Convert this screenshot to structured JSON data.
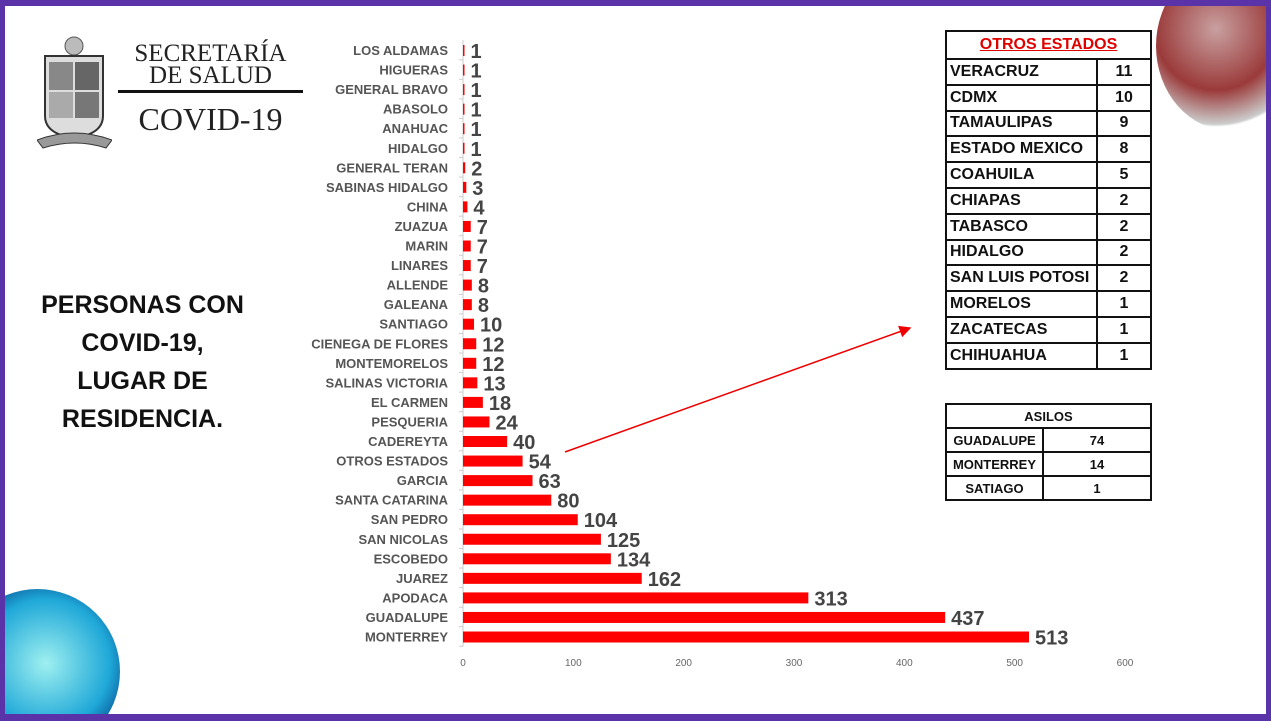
{
  "header": {
    "line1": "SECRETARÍA",
    "line2": "DE SALUD",
    "line3": "COVID-19"
  },
  "title": {
    "lines": [
      "PERSONAS CON",
      "COVID-19,",
      "LUGAR DE",
      "RESIDENCIA."
    ]
  },
  "chart_data": {
    "type": "bar",
    "orientation": "horizontal",
    "categories": [
      "LOS ALDAMAS",
      "HIGUERAS",
      "GENERAL BRAVO",
      "ABASOLO",
      "ANAHUAC",
      "HIDALGO",
      "GENERAL TERAN",
      "SABINAS HIDALGO",
      "CHINA",
      "ZUAZUA",
      "MARIN",
      "LINARES",
      "ALLENDE",
      "GALEANA",
      "SANTIAGO",
      "CIENEGA DE FLORES",
      "MONTEMORELOS",
      "SALINAS VICTORIA",
      "EL CARMEN",
      "PESQUERIA",
      "CADEREYTA",
      "OTROS ESTADOS",
      "GARCIA",
      "SANTA CATARINA",
      "SAN PEDRO",
      "SAN NICOLAS",
      "ESCOBEDO",
      "JUAREZ",
      "APODACA",
      "GUADALUPE",
      "MONTERREY"
    ],
    "values": [
      1,
      1,
      1,
      1,
      1,
      1,
      2,
      3,
      4,
      7,
      7,
      7,
      8,
      8,
      10,
      12,
      12,
      13,
      18,
      24,
      40,
      54,
      63,
      80,
      104,
      125,
      134,
      162,
      313,
      437,
      513
    ],
    "xlim": [
      0,
      600
    ],
    "xticks": [
      0,
      100,
      200,
      300,
      400,
      500,
      600
    ],
    "bar_color": "#ff0000",
    "grid": false,
    "title": "",
    "xlabel": "",
    "ylabel": ""
  },
  "otros_estados": {
    "header": "OTROS ESTADOS",
    "rows": [
      [
        "VERACRUZ",
        "11"
      ],
      [
        "CDMX",
        "10"
      ],
      [
        "TAMAULIPAS",
        "9"
      ],
      [
        "ESTADO MEXICO",
        "8"
      ],
      [
        "COAHUILA",
        "5"
      ],
      [
        "CHIAPAS",
        "2"
      ],
      [
        "TABASCO",
        "2"
      ],
      [
        "HIDALGO",
        "2"
      ],
      [
        "SAN LUIS POTOSI",
        "2"
      ],
      [
        "MORELOS",
        "1"
      ],
      [
        "ZACATECAS",
        "1"
      ],
      [
        "CHIHUAHUA",
        "1"
      ]
    ]
  },
  "asilos": {
    "header": "ASILOS",
    "rows": [
      [
        "GUADALUPE",
        "74"
      ],
      [
        "MONTERREY",
        "14"
      ],
      [
        "SATIAGO",
        "1"
      ]
    ]
  }
}
